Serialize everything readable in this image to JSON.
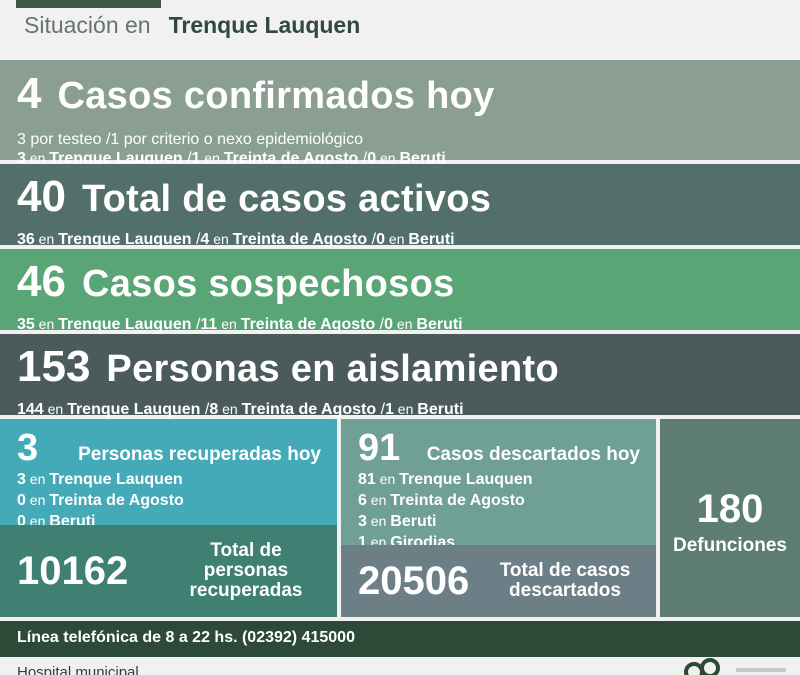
{
  "header": {
    "label": "Situación en",
    "city": "Trenque Lauquen"
  },
  "confirmed": {
    "number": "4",
    "title": "Casos confirmados hoy",
    "line1": "3 por testeo  /1 por criterio o nexo epidemiológico",
    "line2": [
      {
        "n": "3",
        "en": "en",
        "place": "Trenque Lauquen",
        "sep": " /"
      },
      {
        "n": "1",
        "en": "en",
        "place": "Treinta de Agosto",
        "sep": " /"
      },
      {
        "n": "0",
        "en": "en",
        "place": "Beruti",
        "sep": ""
      }
    ]
  },
  "active": {
    "number": "40",
    "title": "Total de casos activos",
    "line": [
      {
        "n": "36",
        "en": "en",
        "place": "Trenque Lauquen",
        "sep": " /"
      },
      {
        "n": "4",
        "en": "en",
        "place": "Treinta de Agosto",
        "sep": " /"
      },
      {
        "n": "0",
        "en": "en",
        "place": "Beruti",
        "sep": ""
      }
    ]
  },
  "suspected": {
    "number": "46",
    "title": "Casos sospechosos",
    "line": [
      {
        "n": "35",
        "en": "en",
        "place": "Trenque Lauquen",
        "sep": " /"
      },
      {
        "n": "11",
        "en": "en",
        "place": "Treinta de Agosto",
        "sep": " /"
      },
      {
        "n": "0",
        "en": "en",
        "place": "Beruti",
        "sep": ""
      }
    ]
  },
  "isolation": {
    "number": "153",
    "title": "Personas en aislamiento",
    "line": [
      {
        "n": "144",
        "en": "en",
        "place": "Trenque Lauquen",
        "sep": " /"
      },
      {
        "n": "8",
        "en": "en",
        "place": "Treinta de Agosto",
        "sep": " /"
      },
      {
        "n": "1",
        "en": "en",
        "place": "Beruti",
        "sep": ""
      }
    ]
  },
  "recovered_today": {
    "number": "3",
    "title": "Personas recuperadas hoy",
    "items": [
      {
        "n": "3",
        "en": "en",
        "place": "Trenque Lauquen"
      },
      {
        "n": "0",
        "en": "en",
        "place": "Treinta de Agosto"
      },
      {
        "n": "0",
        "en": "en",
        "place": "Beruti"
      }
    ]
  },
  "recovered_total": {
    "number": "10162",
    "label": "Total de personas recuperadas"
  },
  "discarded_today": {
    "number": "91",
    "title": "Casos descartados hoy",
    "items": [
      {
        "n": "81",
        "en": "en",
        "place": "Trenque Lauquen"
      },
      {
        "n": "6",
        "en": "en",
        "place": "Treinta de Agosto"
      },
      {
        "n": "3",
        "en": "en",
        "place": "Beruti"
      },
      {
        "n": "1",
        "en": "en",
        "place": "Girodias"
      }
    ]
  },
  "discarded_total": {
    "number": "20506",
    "label": "Total de casos descartados"
  },
  "deaths": {
    "number": "180",
    "label": "Defunciones"
  },
  "phone": "Línea telefónica de 8 a 22 hs. (02392) 415000",
  "footer": {
    "text": "Hospital municipal"
  }
}
